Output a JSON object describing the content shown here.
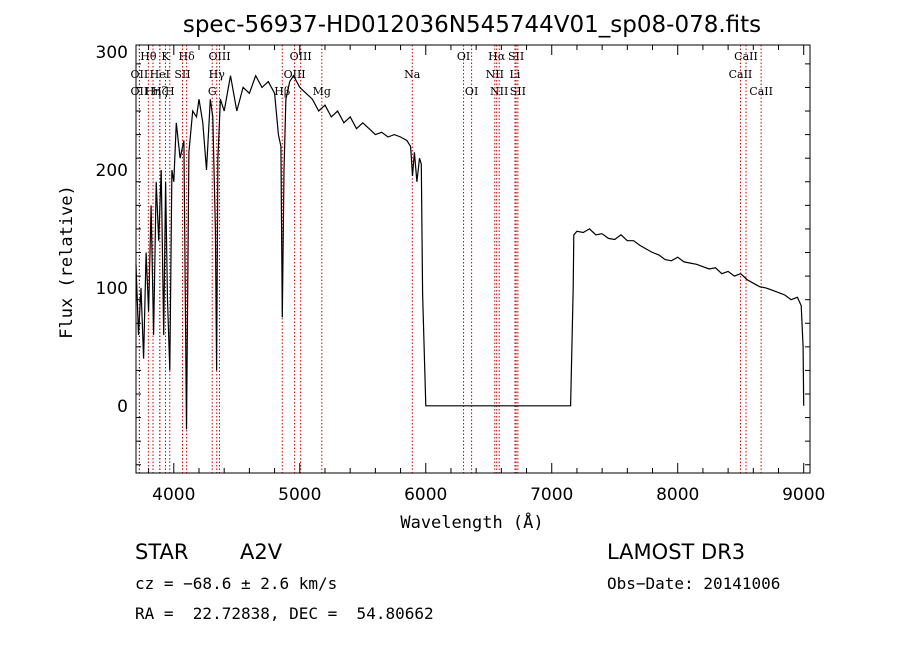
{
  "chart_data": {
    "type": "line",
    "title": "spec-56937-HD012036N545744V01_sp08-078.fits",
    "xlabel": "Wavelength (Å)",
    "ylabel": "Flux (relative)",
    "xlim": [
      3700,
      9050
    ],
    "ylim": [
      -57,
      306
    ],
    "x_ticks": [
      4000,
      5000,
      6000,
      7000,
      8000,
      9000
    ],
    "y_ticks": [
      0,
      100,
      200,
      300
    ],
    "series": [
      {
        "name": "spectrum",
        "x": [
          3700,
          3720,
          3740,
          3760,
          3780,
          3800,
          3820,
          3840,
          3860,
          3880,
          3900,
          3920,
          3935,
          3950,
          3968,
          3985,
          4000,
          4020,
          4050,
          4080,
          4101,
          4120,
          4150,
          4180,
          4200,
          4230,
          4260,
          4290,
          4310,
          4330,
          4340,
          4350,
          4370,
          4400,
          4450,
          4500,
          4550,
          4600,
          4650,
          4700,
          4750,
          4800,
          4830,
          4850,
          4861,
          4875,
          4890,
          4920,
          4950,
          5000,
          5050,
          5100,
          5150,
          5200,
          5250,
          5300,
          5350,
          5400,
          5450,
          5500,
          5550,
          5600,
          5650,
          5700,
          5750,
          5800,
          5850,
          5880,
          5895,
          5910,
          5930,
          5950,
          5965,
          5975,
          6000,
          6500,
          7000,
          7150,
          7170,
          7175,
          7200,
          7250,
          7300,
          7350,
          7400,
          7450,
          7500,
          7550,
          7600,
          7650,
          7700,
          7750,
          7800,
          7850,
          7900,
          7950,
          8000,
          8050,
          8100,
          8150,
          8200,
          8250,
          8300,
          8350,
          8400,
          8450,
          8500,
          8550,
          8600,
          8650,
          8700,
          8750,
          8800,
          8850,
          8900,
          8950,
          8980,
          8995,
          9000
        ],
        "y": [
          120,
          60,
          100,
          40,
          130,
          80,
          170,
          60,
          190,
          140,
          200,
          60,
          190,
          90,
          30,
          200,
          190,
          240,
          210,
          225,
          -20,
          215,
          250,
          245,
          260,
          240,
          200,
          260,
          245,
          150,
          30,
          210,
          260,
          250,
          280,
          250,
          270,
          265,
          280,
          270,
          275,
          265,
          230,
          220,
          75,
          200,
          260,
          275,
          280,
          270,
          265,
          260,
          250,
          255,
          245,
          250,
          240,
          245,
          235,
          240,
          235,
          230,
          232,
          228,
          230,
          228,
          225,
          220,
          195,
          215,
          190,
          210,
          205,
          95,
          0,
          0,
          0,
          0,
          100,
          145,
          148,
          147,
          150,
          145,
          146,
          142,
          141,
          145,
          140,
          140,
          136,
          133,
          130,
          128,
          124,
          123,
          126,
          122,
          121,
          120,
          118,
          116,
          117,
          112,
          114,
          110,
          112,
          107,
          104,
          101,
          100,
          98,
          96,
          94,
          90,
          92,
          85,
          50,
          0
        ]
      }
    ],
    "spectral_lines": [
      {
        "label": "Hθ",
        "x": 3798,
        "row": 0
      },
      {
        "label": "OII",
        "x": 3727,
        "row": 1
      },
      {
        "label": "OII",
        "x": 3727,
        "row": 2
      },
      {
        "label": "Hη",
        "x": 3835,
        "row": 2
      },
      {
        "label": "HeI",
        "x": 3889,
        "row": 1
      },
      {
        "label": "Hζ",
        "x": 3889,
        "row": 2
      },
      {
        "label": "K",
        "x": 3934,
        "row": 0
      },
      {
        "label": "H",
        "x": 3968,
        "row": 2
      },
      {
        "label": "SII",
        "x": 4069,
        "row": 1
      },
      {
        "label": "Hδ",
        "x": 4102,
        "row": 0
      },
      {
        "label": "OIII",
        "x": 4363,
        "row": 0
      },
      {
        "label": "Hγ",
        "x": 4341,
        "row": 1
      },
      {
        "label": "G",
        "x": 4305,
        "row": 2
      },
      {
        "label": "OIII",
        "x": 5007,
        "row": 0
      },
      {
        "label": "OIII",
        "x": 4959,
        "row": 1
      },
      {
        "label": "Hβ",
        "x": 4861,
        "row": 2
      },
      {
        "label": "Mg",
        "x": 5175,
        "row": 2
      },
      {
        "label": "Na",
        "x": 5893,
        "row": 1
      },
      {
        "label": "OI",
        "x": 6300,
        "row": 0
      },
      {
        "label": "OI",
        "x": 6364,
        "row": 2
      },
      {
        "label": "Hα",
        "x": 6563,
        "row": 0
      },
      {
        "label": "NII",
        "x": 6548,
        "row": 1
      },
      {
        "label": "NII",
        "x": 6583,
        "row": 2
      },
      {
        "label": "SII",
        "x": 6717,
        "row": 0
      },
      {
        "label": "Li",
        "x": 6708,
        "row": 1
      },
      {
        "label": "SII",
        "x": 6731,
        "row": 2
      },
      {
        "label": "CaII",
        "x": 8542,
        "row": 0
      },
      {
        "label": "CaII",
        "x": 8498,
        "row": 1
      },
      {
        "label": "CaII",
        "x": 8662,
        "row": 2
      }
    ]
  },
  "info": {
    "object_type": "STAR",
    "spectral_class": "A2V",
    "survey": "LAMOST DR3",
    "cz": "cz = −68.6 ± 2.6 km/s",
    "obs_date": "Obs−Date: 20141006",
    "coords": "RA =  22.72838, DEC =  54.80662"
  },
  "colors": {
    "line_marker": "#cc0000",
    "spectrum": "#000000",
    "axes": "#000000"
  }
}
